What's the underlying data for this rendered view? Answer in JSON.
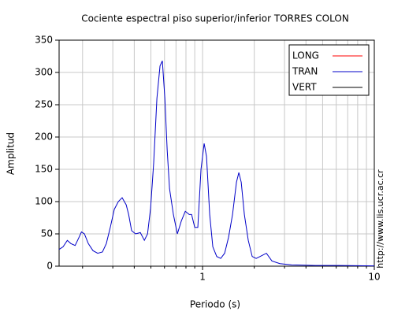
{
  "chart_data": {
    "type": "line",
    "title": "Cociente espectral piso superior/inferior  TORRES COLON",
    "x_label": "Periodo (s)",
    "y_label": "Amplitud",
    "side_note": "http://www.lis.ucr.ac.cr",
    "xscale": "log",
    "grid": true,
    "legend": "upper right",
    "xlim": [
      0.146,
      10
    ],
    "ylim": [
      0,
      350
    ],
    "xticks": [
      1,
      10
    ],
    "xminor": [
      0.2,
      0.3,
      0.4,
      0.5,
      0.6,
      0.7,
      0.8,
      0.9,
      2,
      3,
      4,
      5,
      6,
      7,
      8,
      9
    ],
    "yticks": [
      0,
      50,
      100,
      150,
      200,
      250,
      300,
      350
    ],
    "x": [
      0.146,
      0.154,
      0.163,
      0.171,
      0.181,
      0.191,
      0.197,
      0.205,
      0.216,
      0.23,
      0.245,
      0.261,
      0.275,
      0.29,
      0.306,
      0.323,
      0.34,
      0.359,
      0.371,
      0.386,
      0.407,
      0.434,
      0.458,
      0.478,
      0.498,
      0.519,
      0.542,
      0.565,
      0.583,
      0.603,
      0.622,
      0.642,
      0.676,
      0.713,
      0.752,
      0.793,
      0.836,
      0.863,
      0.9,
      0.938,
      0.979,
      1.021,
      1.054,
      1.1,
      1.147,
      1.209,
      1.275,
      1.344,
      1.417,
      1.494,
      1.575,
      1.626,
      1.679,
      1.751,
      1.845,
      1.945,
      2.051,
      2.162,
      2.353,
      2.535,
      2.818,
      3.3,
      4.529,
      6.217,
      10
    ],
    "series": [
      {
        "name": "LONG",
        "color": "#ff0000",
        "values": [
          null,
          null,
          null,
          null,
          null,
          null,
          null,
          null,
          null,
          null,
          null,
          null,
          null,
          null,
          null,
          null,
          null,
          null,
          null,
          null,
          null,
          null,
          null,
          null,
          null,
          null,
          null,
          null,
          null,
          null,
          null,
          null,
          null,
          null,
          null,
          null,
          null,
          null,
          null,
          null,
          null,
          null,
          null,
          null,
          null,
          null,
          null,
          null,
          null,
          null,
          null,
          null,
          null,
          null,
          null,
          null,
          null,
          null,
          null,
          null,
          null,
          null,
          null,
          null,
          null
        ]
      },
      {
        "name": "TRAN",
        "color": "#0000c8",
        "values": [
          26,
          30,
          40,
          35,
          32,
          45,
          53,
          50,
          35,
          24,
          20,
          22,
          35,
          60,
          88,
          100,
          106,
          95,
          80,
          55,
          50,
          52,
          40,
          50,
          90,
          160,
          260,
          310,
          318,
          260,
          180,
          120,
          80,
          50,
          70,
          85,
          80,
          80,
          60,
          60,
          150,
          190,
          170,
          80,
          30,
          15,
          12,
          20,
          45,
          80,
          130,
          145,
          130,
          80,
          40,
          15,
          12,
          15,
          20,
          8,
          4,
          2,
          1,
          1,
          0.5
        ]
      },
      {
        "name": "VERT",
        "color": "#000000",
        "values": [
          null,
          null,
          null,
          null,
          null,
          null,
          null,
          null,
          null,
          null,
          null,
          null,
          null,
          null,
          null,
          null,
          null,
          null,
          null,
          null,
          null,
          null,
          null,
          null,
          null,
          null,
          null,
          null,
          null,
          null,
          null,
          null,
          null,
          null,
          null,
          null,
          null,
          null,
          null,
          null,
          null,
          null,
          null,
          null,
          null,
          null,
          null,
          null,
          null,
          null,
          null,
          null,
          null,
          null,
          null,
          null,
          null,
          null,
          null,
          null,
          null,
          null,
          null,
          null,
          null
        ]
      }
    ]
  }
}
